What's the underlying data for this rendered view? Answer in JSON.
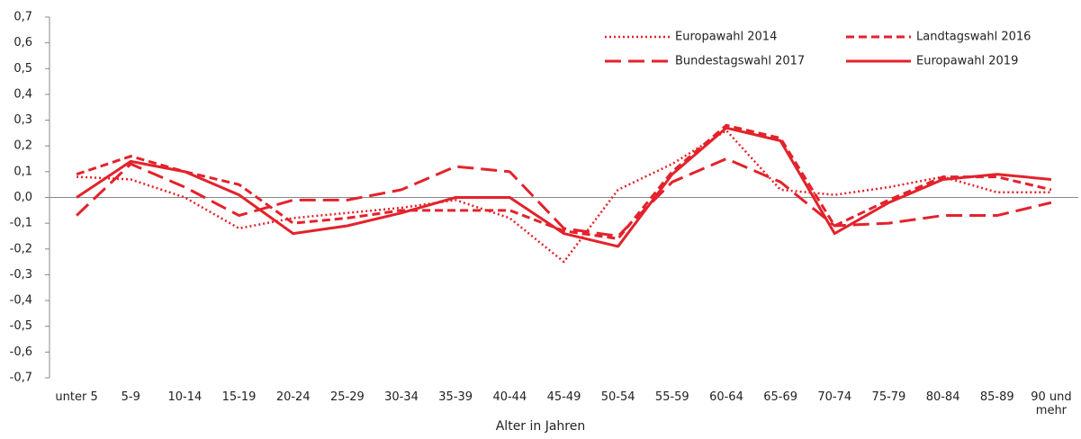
{
  "chart_data": {
    "type": "line",
    "x_label": "Alter in Jahren",
    "categories": [
      "unter 5",
      "5-9",
      "10-14",
      "15-19",
      "20-24",
      "25-29",
      "30-34",
      "35-39",
      "40-44",
      "45-49",
      "50-54",
      "55-59",
      "60-64",
      "65-69",
      "70-74",
      "75-79",
      "80-84",
      "85-89",
      "90 und mehr"
    ],
    "series": [
      {
        "name": "Europawahl 2014",
        "color": "#e3222b",
        "dash": "dotted",
        "values": [
          0.08,
          0.07,
          0.0,
          -0.12,
          -0.08,
          -0.06,
          -0.04,
          -0.01,
          -0.08,
          -0.25,
          0.03,
          0.13,
          0.26,
          0.03,
          0.01,
          0.04,
          0.08,
          0.02,
          0.02
        ]
      },
      {
        "name": "Landtagswahl 2016",
        "color": "#e3222b",
        "dash": "dashed",
        "values": [
          0.09,
          0.16,
          0.1,
          0.05,
          -0.1,
          -0.08,
          -0.05,
          -0.05,
          -0.05,
          -0.13,
          -0.16,
          0.1,
          0.28,
          0.23,
          -0.11,
          -0.01,
          0.08,
          0.08,
          0.03
        ]
      },
      {
        "name": "Bundestagswahl 2017",
        "color": "#e3222b",
        "dash": "longdash",
        "values": [
          -0.07,
          0.13,
          0.04,
          -0.07,
          -0.01,
          -0.01,
          0.03,
          0.12,
          0.1,
          -0.12,
          -0.15,
          0.06,
          0.15,
          0.06,
          -0.11,
          -0.1,
          -0.07,
          -0.07,
          -0.02
        ]
      },
      {
        "name": "Europawahl 2019",
        "color": "#e3222b",
        "dash": "solid",
        "values": [
          0.0,
          0.14,
          0.1,
          0.01,
          -0.14,
          -0.11,
          -0.06,
          0.0,
          0.0,
          -0.14,
          -0.19,
          0.09,
          0.27,
          0.22,
          -0.14,
          -0.02,
          0.07,
          0.09,
          0.07
        ]
      }
    ],
    "ylim": [
      -0.7,
      0.7
    ],
    "yticks": [
      {
        "value": 0.7,
        "label": "0,7"
      },
      {
        "value": 0.6,
        "label": "0,6"
      },
      {
        "value": 0.5,
        "label": "0,5"
      },
      {
        "value": 0.4,
        "label": "0,4"
      },
      {
        "value": 0.3,
        "label": "0,3"
      },
      {
        "value": 0.2,
        "label": "0,2"
      },
      {
        "value": 0.1,
        "label": "0,1"
      },
      {
        "value": 0.0,
        "label": "0,0"
      },
      {
        "value": -0.1,
        "label": "-0,1"
      },
      {
        "value": -0.2,
        "label": "-0,2"
      },
      {
        "value": -0.3,
        "label": "-0,3"
      },
      {
        "value": -0.4,
        "label": "-0,4"
      },
      {
        "value": -0.5,
        "label": "-0,5"
      },
      {
        "value": -0.6,
        "label": "-0,6"
      },
      {
        "value": -0.7,
        "label": "-0,7"
      }
    ],
    "grid": false,
    "legend": "top-right"
  }
}
